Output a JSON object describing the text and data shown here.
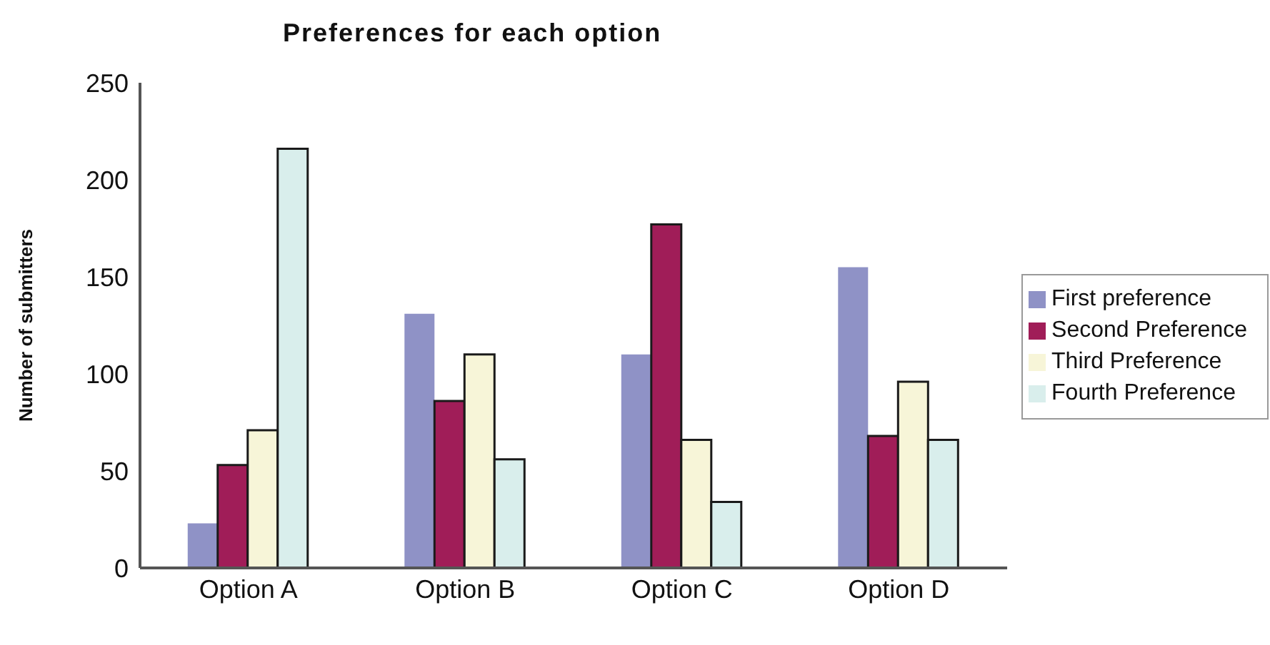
{
  "chart_data": {
    "type": "bar",
    "title": "Preferences for each option",
    "ylabel": "Number of submitters",
    "categories": [
      "Option A",
      "Option B",
      "Option C",
      "Option D"
    ],
    "series": [
      {
        "name": "First preference",
        "color": "#8f92c6",
        "values": [
          23,
          131,
          110,
          155
        ]
      },
      {
        "name": "Second Preference",
        "color": "#a01d58",
        "values": [
          53,
          86,
          177,
          68
        ]
      },
      {
        "name": "Third Preference",
        "color": "#f7f5d8",
        "values": [
          71,
          110,
          66,
          96
        ]
      },
      {
        "name": "Fourth Preference",
        "color": "#d9eeec",
        "values": [
          216,
          56,
          34,
          66
        ]
      }
    ],
    "ylim": [
      0,
      250
    ],
    "yticks": [
      0,
      50,
      100,
      150,
      200,
      250
    ],
    "grid": false,
    "legend": "right"
  }
}
